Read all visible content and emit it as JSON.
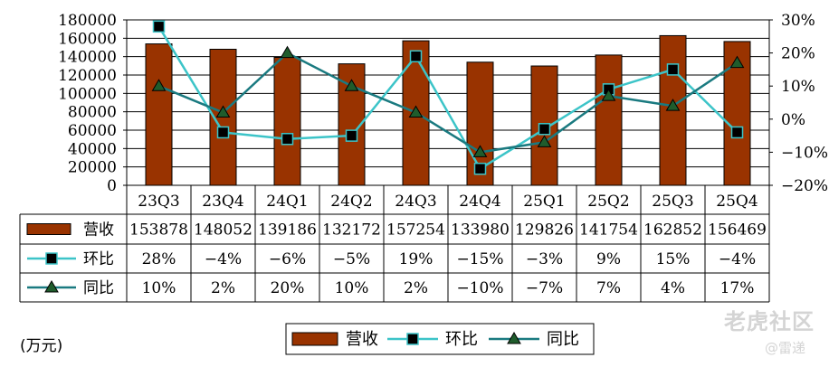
{
  "chart_data": {
    "type": "bar",
    "categories": [
      "23Q3",
      "23Q4",
      "24Q1",
      "24Q2",
      "24Q3",
      "24Q4",
      "25Q1",
      "25Q2",
      "25Q3",
      "25Q4"
    ],
    "series": [
      {
        "name": "营收",
        "type": "bar",
        "axis": "left",
        "values": [
          153878,
          148052,
          139186,
          132172,
          157254,
          133980,
          129826,
          141754,
          162852,
          156469
        ],
        "table_values": [
          "153878",
          "148052",
          "139186",
          "132172",
          "157254",
          "133980",
          "129826",
          "141754",
          "162852",
          "156469"
        ]
      },
      {
        "name": "环比",
        "type": "line",
        "axis": "right",
        "values": [
          28,
          -4,
          -6,
          -5,
          19,
          -15,
          -3,
          9,
          15,
          -4
        ],
        "table_values": [
          "28%",
          "-4%",
          "-6%",
          "-5%",
          "19%",
          "-15%",
          "-3%",
          "9%",
          "15%",
          "-4%"
        ]
      },
      {
        "name": "同比",
        "type": "line",
        "axis": "right",
        "values": [
          10,
          2,
          20,
          10,
          2,
          -10,
          -7,
          7,
          4,
          17
        ],
        "table_values": [
          "10%",
          "2%",
          "20%",
          "10%",
          "2%",
          "-10%",
          "-7%",
          "7%",
          "4%",
          "17%"
        ]
      }
    ],
    "ylim_left": [
      0,
      180000
    ],
    "yticks_left": [
      "0",
      "20000",
      "40000",
      "60000",
      "80000",
      "100000",
      "120000",
      "140000",
      "160000",
      "180000"
    ],
    "ylim_right": [
      -20,
      30
    ],
    "yticks_right": [
      "-20%",
      "-10%",
      "0%",
      "10%",
      "20%",
      "30%"
    ],
    "unit_label": "(万元)",
    "legend_position": "bottom",
    "grid": "horizontal",
    "colors": {
      "bar": "#993300",
      "qoq": "#3cc4c8",
      "yoy": "#1a7a80"
    }
  },
  "watermark": {
    "main": "老虎社区",
    "sub": "@雷递"
  }
}
